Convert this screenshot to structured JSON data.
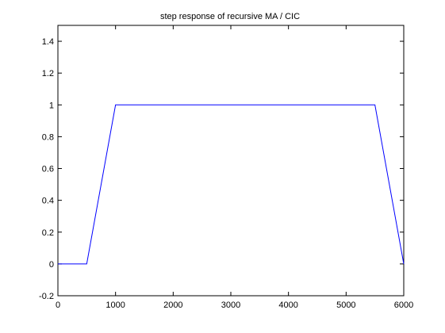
{
  "chart_data": {
    "type": "line",
    "title": "step response of recursive MA / CIC",
    "xlabel": "",
    "ylabel": "",
    "xlim": [
      0,
      6000
    ],
    "ylim": [
      -0.2,
      1.5
    ],
    "x_ticks": [
      0,
      1000,
      2000,
      3000,
      4000,
      5000,
      6000
    ],
    "x_tick_labels": [
      "0",
      "1000",
      "2000",
      "3000",
      "4000",
      "5000",
      "6000"
    ],
    "y_ticks": [
      -0.2,
      0,
      0.2,
      0.4,
      0.6,
      0.8,
      1,
      1.2,
      1.4
    ],
    "y_tick_labels": [
      "-0.2",
      "0",
      "0.2",
      "0.4",
      "0.6",
      "0.8",
      "1",
      "1.2",
      "1.4"
    ],
    "grid": false,
    "legend": "none",
    "series": [
      {
        "color": "#0000ff",
        "x": [
          0,
          500,
          1000,
          5500,
          6000
        ],
        "y": [
          0,
          0,
          1,
          1,
          0
        ]
      }
    ]
  }
}
